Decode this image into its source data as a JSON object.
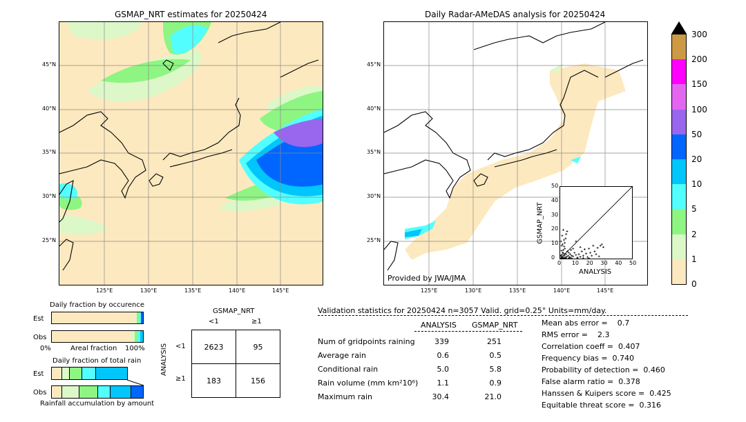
{
  "maps": {
    "left_title": "GSMAP_NRT estimates for 20250424",
    "right_title": "Daily Radar-AMeDAS analysis for 20250424",
    "lat_ticks": [
      "45°N",
      "40°N",
      "35°N",
      "30°N",
      "25°N"
    ],
    "lon_ticks": [
      "125°E",
      "130°E",
      "135°E",
      "140°E",
      "145°E"
    ],
    "provided_by": "Provided by JWA/JMA"
  },
  "colorbar": {
    "labels": [
      "0",
      "1",
      "2",
      "5",
      "10",
      "20",
      "50",
      "100",
      "150",
      "200",
      "300"
    ],
    "colors": [
      "#fde9bf",
      "#dcf8c8",
      "#8ef583",
      "#53fefe",
      "#00c6fc",
      "#0066ff",
      "#9966ee",
      "#e266f0",
      "#ff00ff",
      "#cc9944"
    ]
  },
  "fractions": {
    "occ_title": "Daily fraction by occurence",
    "est_label": "Est",
    "obs_label": "Obs",
    "axis_left": "0%",
    "axis_mid": "Areal fraction",
    "axis_right": "100%",
    "total_title": "Daily fraction of total rain",
    "accum_label": "Rainfall accumulation by amount"
  },
  "contingency": {
    "title": "GSMAP_NRT",
    "col_lt": "<1",
    "col_ge": "≥1",
    "row_axis": "ANALYSIS",
    "row_lt": "<1",
    "row_ge": "≥1",
    "cells": [
      "2623",
      "95",
      "183",
      "156"
    ]
  },
  "validation": {
    "header": "Validation statistics for 20250424  n=3057 Valid. grid=0.25° Units=mm/day.",
    "col_analysis": "ANALYSIS",
    "col_gsmap": "GSMAP_NRT",
    "rows": [
      {
        "label": "Num of gridpoints raining",
        "a": "339",
        "g": "251"
      },
      {
        "label": "Average rain",
        "a": "0.6",
        "g": "0.5"
      },
      {
        "label": "Conditional rain",
        "a": "5.0",
        "g": "5.8"
      },
      {
        "label": "Rain volume (mm km²10⁶)",
        "a": "1.1",
        "g": "0.9"
      },
      {
        "label": "Maximum rain",
        "a": "30.4",
        "g": "21.0"
      }
    ],
    "scores": [
      "Mean abs error =    0.7",
      "RMS error =    2.3",
      "Correlation coeff =  0.407",
      "Frequency bias =  0.740",
      "Probability of detection =  0.460",
      "False alarm ratio =  0.378",
      "Hanssen & Kuipers score =  0.425",
      "Equitable threat score =  0.316"
    ]
  },
  "chart_data": {
    "type": "scatter",
    "xlabel": "ANALYSIS",
    "ylabel": "GSMAP_NRT",
    "xlim": [
      0,
      50
    ],
    "ylim": [
      0,
      50
    ],
    "xticks": [
      "0",
      "10",
      "20",
      "30",
      "40",
      "50"
    ],
    "yticks": [
      "0",
      "10",
      "20",
      "30",
      "40",
      "50"
    ],
    "points": [
      [
        0.5,
        0.2
      ],
      [
        0.8,
        1.5
      ],
      [
        1,
        0.3
      ],
      [
        1.2,
        2.8
      ],
      [
        1.5,
        0.5
      ],
      [
        1.8,
        4.2
      ],
      [
        2,
        1
      ],
      [
        2.2,
        6
      ],
      [
        2.5,
        0.2
      ],
      [
        2.8,
        8.5
      ],
      [
        3,
        2
      ],
      [
        3.2,
        11
      ],
      [
        3.5,
        0.6
      ],
      [
        3.8,
        14
      ],
      [
        4,
        3
      ],
      [
        4.2,
        17
      ],
      [
        4.5,
        1.2
      ],
      [
        4.8,
        19
      ],
      [
        5,
        5
      ],
      [
        1,
        9
      ],
      [
        0.6,
        12
      ],
      [
        1.4,
        16
      ],
      [
        2.1,
        20
      ],
      [
        2.6,
        13
      ],
      [
        3.3,
        7
      ],
      [
        0.9,
        5.5
      ],
      [
        1.7,
        10
      ],
      [
        2.4,
        3.5
      ],
      [
        0.4,
        2.2
      ],
      [
        5.5,
        2
      ],
      [
        6,
        4
      ],
      [
        6.5,
        1
      ],
      [
        7,
        3
      ],
      [
        7.5,
        6
      ],
      [
        8,
        2
      ],
      [
        9,
        1.5
      ],
      [
        10,
        4
      ],
      [
        11,
        2.5
      ],
      [
        12,
        0.8
      ],
      [
        13,
        3
      ],
      [
        14,
        1.2
      ],
      [
        15,
        5
      ],
      [
        16,
        2
      ],
      [
        17,
        6.5
      ],
      [
        18,
        3.5
      ],
      [
        19,
        1
      ],
      [
        20,
        7
      ],
      [
        21,
        4
      ],
      [
        22,
        2
      ],
      [
        23,
        9
      ],
      [
        24,
        5
      ],
      [
        25,
        3
      ],
      [
        26,
        7.5
      ],
      [
        27,
        1.5
      ],
      [
        28,
        9
      ],
      [
        29,
        10
      ],
      [
        30,
        8
      ],
      [
        11,
        12
      ],
      [
        14,
        8
      ],
      [
        9,
        7
      ],
      [
        3,
        0.1
      ],
      [
        4,
        0.2
      ],
      [
        6,
        0.3
      ],
      [
        8,
        0.1
      ],
      [
        12,
        0.2
      ],
      [
        16,
        0.4
      ],
      [
        20,
        0.2
      ],
      [
        2,
        0.1
      ],
      [
        1,
        0.05
      ],
      [
        7,
        0.6
      ]
    ]
  }
}
